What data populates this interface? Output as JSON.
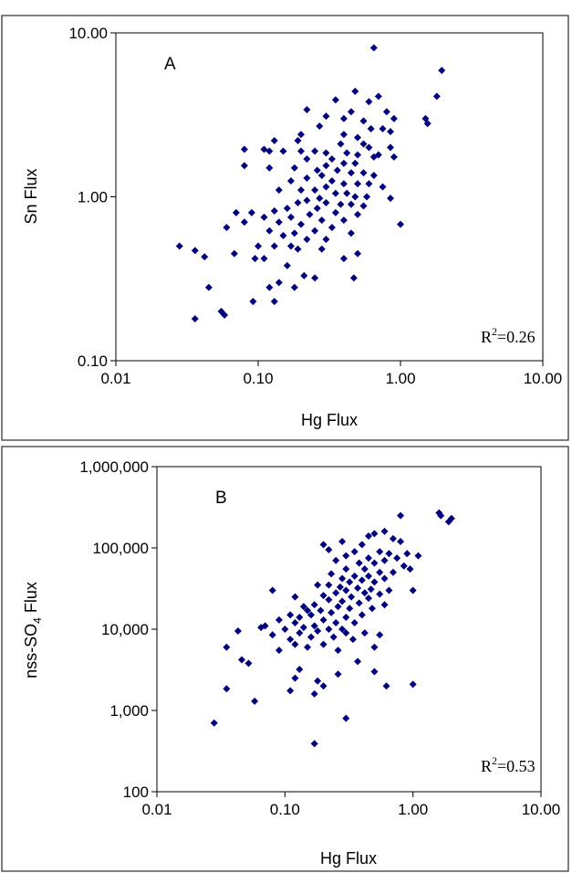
{
  "chart_data": [
    {
      "type": "scatter",
      "panel_label": "A",
      "xlabel": "Hg Flux",
      "ylabel": "Sn Flux",
      "x_scale": "log",
      "y_scale": "log",
      "xlim": [
        0.01,
        10
      ],
      "ylim": [
        0.1,
        10
      ],
      "x_ticks": [
        "0.01",
        "0.10",
        "1.00",
        "10.00"
      ],
      "y_ticks": [
        "0.10",
        "1.00",
        "10.00"
      ],
      "annotation": {
        "base": "R",
        "sup": "2",
        "value": "=0.26"
      },
      "grid": false,
      "marker_color": "#00007f",
      "points": [
        [
          0.65,
          8.1
        ],
        [
          1.95,
          5.9
        ],
        [
          0.48,
          4.4
        ],
        [
          0.7,
          4.1
        ],
        [
          1.8,
          4.1
        ],
        [
          0.35,
          3.9
        ],
        [
          0.6,
          3.8
        ],
        [
          0.22,
          3.4
        ],
        [
          0.45,
          3.3
        ],
        [
          0.8,
          3.3
        ],
        [
          0.3,
          3.1
        ],
        [
          1.5,
          3.0
        ],
        [
          0.4,
          3.0
        ],
        [
          0.9,
          3.0
        ],
        [
          0.55,
          2.9
        ],
        [
          1.55,
          2.8
        ],
        [
          0.27,
          2.7
        ],
        [
          0.62,
          2.6
        ],
        [
          0.75,
          2.6
        ],
        [
          0.85,
          2.5
        ],
        [
          0.2,
          2.4
        ],
        [
          0.4,
          2.4
        ],
        [
          0.5,
          2.3
        ],
        [
          0.13,
          2.2
        ],
        [
          0.19,
          2.2
        ],
        [
          0.38,
          2.1
        ],
        [
          0.55,
          2.1
        ],
        [
          0.6,
          2.0
        ],
        [
          0.85,
          2.0
        ],
        [
          0.08,
          1.95
        ],
        [
          0.11,
          1.95
        ],
        [
          0.12,
          1.9
        ],
        [
          0.15,
          1.9
        ],
        [
          0.2,
          1.9
        ],
        [
          0.25,
          1.9
        ],
        [
          0.3,
          1.85
        ],
        [
          0.42,
          1.85
        ],
        [
          0.5,
          1.8
        ],
        [
          0.7,
          1.8
        ],
        [
          0.9,
          1.75
        ],
        [
          0.65,
          1.75
        ],
        [
          0.22,
          1.7
        ],
        [
          0.33,
          1.7
        ],
        [
          0.48,
          1.6
        ],
        [
          0.4,
          1.6
        ],
        [
          0.3,
          1.55
        ],
        [
          0.08,
          1.55
        ],
        [
          0.12,
          1.5
        ],
        [
          0.18,
          1.5
        ],
        [
          0.26,
          1.45
        ],
        [
          0.36,
          1.45
        ],
        [
          0.45,
          1.4
        ],
        [
          0.55,
          1.4
        ],
        [
          0.65,
          1.35
        ],
        [
          0.28,
          1.35
        ],
        [
          0.22,
          1.3
        ],
        [
          0.17,
          1.25
        ],
        [
          0.33,
          1.25
        ],
        [
          0.4,
          1.2
        ],
        [
          0.5,
          1.2
        ],
        [
          0.6,
          1.2
        ],
        [
          0.75,
          1.15
        ],
        [
          0.3,
          1.15
        ],
        [
          0.25,
          1.1
        ],
        [
          0.2,
          1.1
        ],
        [
          0.14,
          1.1
        ],
        [
          0.35,
          1.05
        ],
        [
          0.42,
          1.05
        ],
        [
          0.48,
          1.0
        ],
        [
          0.58,
          1.0
        ],
        [
          0.85,
          0.98
        ],
        [
          0.27,
          0.98
        ],
        [
          0.22,
          0.95
        ],
        [
          0.19,
          0.92
        ],
        [
          0.3,
          0.92
        ],
        [
          0.38,
          0.9
        ],
        [
          0.45,
          0.9
        ],
        [
          0.55,
          0.88
        ],
        [
          0.16,
          0.85
        ],
        [
          0.26,
          0.85
        ],
        [
          0.13,
          0.82
        ],
        [
          0.09,
          0.8
        ],
        [
          0.07,
          0.8
        ],
        [
          0.35,
          0.8
        ],
        [
          0.5,
          0.78
        ],
        [
          0.23,
          0.78
        ],
        [
          0.11,
          0.75
        ],
        [
          0.17,
          0.75
        ],
        [
          0.28,
          0.72
        ],
        [
          0.4,
          0.72
        ],
        [
          0.14,
          0.7
        ],
        [
          0.08,
          0.7
        ],
        [
          0.2,
          0.68
        ],
        [
          0.06,
          0.65
        ],
        [
          0.33,
          0.65
        ],
        [
          0.12,
          0.62
        ],
        [
          0.25,
          0.62
        ],
        [
          0.18,
          0.6
        ],
        [
          0.45,
          0.6
        ],
        [
          0.15,
          0.58
        ],
        [
          0.22,
          0.55
        ],
        [
          0.3,
          0.55
        ],
        [
          0.1,
          0.5
        ],
        [
          0.13,
          0.5
        ],
        [
          0.19,
          0.48
        ],
        [
          0.028,
          0.5
        ],
        [
          0.036,
          0.47
        ],
        [
          0.042,
          0.43
        ],
        [
          0.068,
          0.45
        ],
        [
          0.095,
          0.42
        ],
        [
          0.17,
          0.5
        ],
        [
          0.28,
          0.48
        ],
        [
          0.4,
          0.42
        ],
        [
          0.5,
          0.45
        ],
        [
          1.0,
          0.68
        ],
        [
          0.11,
          0.42
        ],
        [
          0.16,
          0.38
        ],
        [
          0.21,
          0.33
        ],
        [
          0.25,
          0.32
        ],
        [
          0.47,
          0.32
        ],
        [
          0.18,
          0.28
        ],
        [
          0.12,
          0.28
        ],
        [
          0.045,
          0.28
        ],
        [
          0.055,
          0.2
        ],
        [
          0.058,
          0.19
        ],
        [
          0.036,
          0.18
        ],
        [
          0.092,
          0.23
        ],
        [
          0.13,
          0.23
        ],
        [
          0.14,
          0.3
        ]
      ]
    },
    {
      "type": "scatter",
      "panel_label": "B",
      "xlabel": "Hg Flux",
      "ylabel_main": "nss-SO",
      "ylabel_sub": "4",
      "ylabel_tail": " Flux",
      "x_scale": "log",
      "y_scale": "log",
      "xlim": [
        0.01,
        10
      ],
      "ylim": [
        100,
        1000000
      ],
      "x_ticks": [
        "0.01",
        "0.10",
        "1.00",
        "10.00"
      ],
      "y_ticks": [
        "100",
        "1,000",
        "10,000",
        "100,000",
        "1,000,000"
      ],
      "annotation": {
        "base": "R",
        "sup": "2",
        "value": "=0.53"
      },
      "grid": false,
      "marker_color": "#00007f",
      "points": [
        [
          1.6,
          270000
        ],
        [
          1.65,
          250000
        ],
        [
          2.0,
          230000
        ],
        [
          1.9,
          210000
        ],
        [
          0.8,
          250000
        ],
        [
          0.6,
          160000
        ],
        [
          0.5,
          150000
        ],
        [
          0.45,
          140000
        ],
        [
          0.7,
          130000
        ],
        [
          0.8,
          120000
        ],
        [
          0.28,
          120000
        ],
        [
          0.4,
          110000
        ],
        [
          0.2,
          110000
        ],
        [
          0.22,
          95000
        ],
        [
          0.35,
          90000
        ],
        [
          0.55,
          90000
        ],
        [
          0.65,
          85000
        ],
        [
          0.9,
          85000
        ],
        [
          1.1,
          80000
        ],
        [
          0.3,
          80000
        ],
        [
          0.45,
          75000
        ],
        [
          0.75,
          75000
        ],
        [
          0.25,
          70000
        ],
        [
          0.6,
          70000
        ],
        [
          0.38,
          65000
        ],
        [
          0.5,
          65000
        ],
        [
          0.85,
          60000
        ],
        [
          0.95,
          55000
        ],
        [
          0.3,
          55000
        ],
        [
          0.42,
          55000
        ],
        [
          0.7,
          50000
        ],
        [
          0.55,
          50000
        ],
        [
          0.23,
          48000
        ],
        [
          0.35,
          45000
        ],
        [
          0.45,
          45000
        ],
        [
          0.6,
          42000
        ],
        [
          0.28,
          42000
        ],
        [
          0.4,
          40000
        ],
        [
          0.5,
          38000
        ],
        [
          0.32,
          38000
        ],
        [
          0.22,
          35000
        ],
        [
          0.18,
          35000
        ],
        [
          0.27,
          33000
        ],
        [
          0.37,
          32000
        ],
        [
          0.47,
          31000
        ],
        [
          0.65,
          30000
        ],
        [
          0.3,
          30000
        ],
        [
          0.08,
          30000
        ],
        [
          1.0,
          30000
        ],
        [
          0.25,
          28000
        ],
        [
          0.42,
          28000
        ],
        [
          0.55,
          27000
        ],
        [
          0.2,
          26000
        ],
        [
          0.33,
          25000
        ],
        [
          0.12,
          25000
        ],
        [
          0.45,
          24000
        ],
        [
          0.22,
          23000
        ],
        [
          0.28,
          22000
        ],
        [
          0.38,
          21000
        ],
        [
          0.6,
          20000
        ],
        [
          0.17,
          20000
        ],
        [
          0.14,
          19000
        ],
        [
          0.26,
          19000
        ],
        [
          0.32,
          18000
        ],
        [
          0.48,
          18000
        ],
        [
          0.19,
          17000
        ],
        [
          0.15,
          17000
        ],
        [
          0.23,
          16000
        ],
        [
          0.11,
          15000
        ],
        [
          0.4,
          15000
        ],
        [
          0.16,
          15000
        ],
        [
          0.3,
          14000
        ],
        [
          0.13,
          14000
        ],
        [
          0.2,
          13000
        ],
        [
          0.09,
          13000
        ],
        [
          0.25,
          12000
        ],
        [
          0.35,
          12000
        ],
        [
          0.12,
          12000
        ],
        [
          0.17,
          11000
        ],
        [
          0.07,
          11000
        ],
        [
          0.065,
          10500
        ],
        [
          0.14,
          10500
        ],
        [
          0.22,
          10000
        ],
        [
          0.28,
          10000
        ],
        [
          0.1,
          10000
        ],
        [
          0.18,
          9500
        ],
        [
          0.043,
          9500
        ],
        [
          0.13,
          9000
        ],
        [
          0.3,
          9000
        ],
        [
          0.42,
          9000
        ],
        [
          0.55,
          8500
        ],
        [
          0.08,
          8500
        ],
        [
          0.24,
          8000
        ],
        [
          0.16,
          8000
        ],
        [
          0.11,
          7500
        ],
        [
          0.34,
          7500
        ],
        [
          0.12,
          6500
        ],
        [
          0.2,
          6500
        ],
        [
          0.15,
          6000
        ],
        [
          0.035,
          6000
        ],
        [
          0.09,
          5500
        ],
        [
          0.26,
          5500
        ],
        [
          0.5,
          6000
        ],
        [
          0.046,
          4200
        ],
        [
          0.052,
          3800
        ],
        [
          0.37,
          4000
        ],
        [
          0.13,
          3200
        ],
        [
          0.12,
          2500
        ],
        [
          0.2,
          2000
        ],
        [
          0.26,
          2800
        ],
        [
          0.18,
          2300
        ],
        [
          0.5,
          3000
        ],
        [
          0.62,
          2000
        ],
        [
          1.0,
          2100
        ],
        [
          0.035,
          1850
        ],
        [
          0.11,
          1750
        ],
        [
          0.17,
          1600
        ],
        [
          0.058,
          1300
        ],
        [
          0.3,
          800
        ],
        [
          0.028,
          700
        ],
        [
          0.17,
          390
        ]
      ]
    }
  ]
}
